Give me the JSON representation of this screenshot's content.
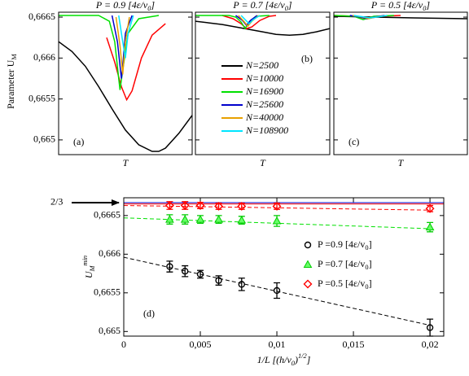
{
  "chart_data": [
    {
      "type": "line",
      "title": [
        "P = 0.9  [4ε/v",
        [
          "0",
          "sub"
        ],
        "]"
      ],
      "ylabel": [
        "Parameter U",
        [
          "M",
          "sub"
        ]
      ],
      "xlabel": "T",
      "label": "(a)",
      "xlim": [
        0,
        1
      ],
      "ylim": [
        0.66482,
        0.66656
      ],
      "yticks": [
        {
          "value": 0.665,
          "label": "0,665"
        },
        {
          "value": 0.6655,
          "label": "0,6655"
        },
        {
          "value": 0.666,
          "label": "0,666"
        },
        {
          "value": 0.6665,
          "label": "0,6665"
        }
      ],
      "series": [
        {
          "color": "#000000",
          "x": [
            0,
            0.1,
            0.2,
            0.3,
            0.4,
            0.5,
            0.6,
            0.7,
            0.75,
            0.8,
            0.9,
            1
          ],
          "values": [
            0.6662,
            0.66608,
            0.6659,
            0.66565,
            0.66538,
            0.66512,
            0.66494,
            0.66486,
            0.66486,
            0.6649,
            0.66508,
            0.6653
          ]
        },
        {
          "color": "#ff0000",
          "x": [
            0.36,
            0.42,
            0.47,
            0.51,
            0.55,
            0.62,
            0.7,
            0.8
          ],
          "values": [
            0.66625,
            0.66595,
            0.66565,
            0.66549,
            0.6656,
            0.666,
            0.66628,
            0.66642
          ]
        },
        {
          "color": "#00e000",
          "x": [
            0,
            0.3,
            0.38,
            0.42,
            0.45,
            0.46,
            0.48,
            0.52,
            0.6,
            0.75
          ],
          "values": [
            0.66652,
            0.66652,
            0.66645,
            0.6662,
            0.66575,
            0.66561,
            0.66585,
            0.6663,
            0.66648,
            0.66652
          ]
        },
        {
          "color": "#0000cc",
          "x": [
            0.4,
            0.44,
            0.47,
            0.48,
            0.5,
            0.55
          ],
          "values": [
            0.66652,
            0.6662,
            0.66575,
            0.6659,
            0.6663,
            0.66652
          ]
        },
        {
          "color": "#e8a000",
          "x": [
            0.43,
            0.46,
            0.48,
            0.5,
            0.53
          ],
          "values": [
            0.6665,
            0.66615,
            0.6658,
            0.6662,
            0.6665
          ]
        },
        {
          "color": "#00e5ff",
          "x": [
            0.45,
            0.48,
            0.5,
            0.52,
            0.56
          ],
          "values": [
            0.66652,
            0.6662,
            0.666,
            0.6663,
            0.66652
          ]
        }
      ]
    },
    {
      "type": "line",
      "title": [
        "P = 0.7  [4ε/v",
        [
          "0",
          "sub"
        ],
        "]"
      ],
      "xlabel": "T",
      "label": "(b)",
      "legend": "center",
      "xlim": [
        0,
        1
      ],
      "ylim": [
        0.66482,
        0.66656
      ],
      "yticks": [
        0.665,
        0.6655,
        0.666,
        0.6665
      ],
      "series": [
        {
          "name": "N=2500",
          "color": "#000000",
          "x": [
            0,
            0.1,
            0.2,
            0.3,
            0.4,
            0.5,
            0.6,
            0.7,
            0.8,
            0.9,
            1
          ],
          "values": [
            0.66645,
            0.66643,
            0.66641,
            0.66638,
            0.66635,
            0.66632,
            0.66629,
            0.66628,
            0.66629,
            0.66632,
            0.66636
          ]
        },
        {
          "name": "N=10000",
          "color": "#ff0000",
          "x": [
            0.2,
            0.28,
            0.34,
            0.38,
            0.42,
            0.48,
            0.55,
            0.6
          ],
          "values": [
            0.66652,
            0.66648,
            0.66642,
            0.66636,
            0.66638,
            0.66646,
            0.66651,
            0.66652
          ]
        },
        {
          "name": "N=16900",
          "color": "#00e000",
          "x": [
            0,
            0.25,
            0.3,
            0.34,
            0.37,
            0.4,
            0.45,
            0.55
          ],
          "values": [
            0.66652,
            0.66652,
            0.6665,
            0.66644,
            0.66636,
            0.66644,
            0.66651,
            0.66652
          ]
        },
        {
          "name": "N=25600",
          "color": "#0000cc",
          "x": [
            0.3,
            0.35,
            0.38,
            0.41,
            0.46
          ],
          "values": [
            0.66652,
            0.66646,
            0.6664,
            0.66646,
            0.66652
          ]
        },
        {
          "name": "N=40000",
          "color": "#e8a000",
          "x": [
            0.32,
            0.36,
            0.39,
            0.42,
            0.47
          ],
          "values": [
            0.66652,
            0.66645,
            0.66639,
            0.66645,
            0.66652
          ]
        },
        {
          "name": "N=108900",
          "color": "#00e5ff",
          "x": [
            0.34,
            0.37,
            0.4,
            0.43,
            0.48
          ],
          "values": [
            0.66652,
            0.66647,
            0.66642,
            0.66647,
            0.66652
          ]
        }
      ]
    },
    {
      "type": "line",
      "title": [
        "P = 0.5  [4ε/v",
        [
          "0",
          "sub"
        ],
        "]"
      ],
      "xlabel": "T",
      "label": "(c)",
      "xlim": [
        0,
        1
      ],
      "ylim": [
        0.66482,
        0.66656
      ],
      "yticks": [
        0.665,
        0.6655,
        0.666,
        0.6665
      ],
      "series": [
        {
          "color": "#000000",
          "x": [
            0,
            0.3,
            0.6,
            1
          ],
          "values": [
            0.66651,
            0.6665,
            0.66649,
            0.66648
          ]
        },
        {
          "color": "#ff0000",
          "x": [
            0,
            0.15,
            0.25,
            0.35,
            0.5
          ],
          "values": [
            0.66652,
            0.66651,
            0.66648,
            0.66651,
            0.66652
          ]
        },
        {
          "color": "#00e000",
          "x": [
            0,
            0.15,
            0.22,
            0.3,
            0.45
          ],
          "values": [
            0.66652,
            0.66651,
            0.66647,
            0.66651,
            0.66652
          ]
        },
        {
          "color": "#0000cc",
          "x": [
            0.12,
            0.2,
            0.25,
            0.3,
            0.38
          ],
          "values": [
            0.66652,
            0.6665,
            0.66648,
            0.6665,
            0.66652
          ]
        },
        {
          "color": "#e8a000",
          "x": [
            0.14,
            0.22,
            0.26,
            0.31,
            0.4
          ],
          "values": [
            0.66652,
            0.6665,
            0.66648,
            0.6665,
            0.66652
          ]
        },
        {
          "color": "#00e5ff",
          "x": [
            0.15,
            0.23,
            0.27,
            0.32,
            0.4
          ],
          "values": [
            0.66652,
            0.6665,
            0.66649,
            0.6665,
            0.66652
          ]
        }
      ]
    },
    {
      "type": "scatter",
      "label": "(d)",
      "ylabel": [
        "U",
        [
          "M",
          "sub"
        ],
        [
          "min",
          "sup"
        ]
      ],
      "xlabel": [
        "1/L  [(h/v",
        [
          "0",
          "sub"
        ],
        ")",
        [
          "1/2",
          "sup"
        ],
        "]"
      ],
      "xlim": [
        0,
        0.0209
      ],
      "ylim": [
        0.66494,
        0.66673
      ],
      "xticks": [
        0,
        {
          "value": 0.005,
          "label": "0,005"
        },
        {
          "value": 0.01,
          "label": "0,01"
        },
        {
          "value": 0.015,
          "label": "0,015"
        },
        {
          "value": 0.02,
          "label": "0,02"
        }
      ],
      "yticks": [
        {
          "value": 0.665,
          "label": "0,665"
        },
        {
          "value": 0.6655,
          "label": "0,6655"
        },
        {
          "value": 0.666,
          "label": "0,666"
        },
        {
          "value": 0.6665,
          "label": "0,6665"
        }
      ],
      "annotation": {
        "text": "2/3",
        "value": 0.666667
      },
      "lines": [
        {
          "color": "#0000cc",
          "dashed": false,
          "x": [
            0,
            0.0209
          ],
          "values": [
            0.666667,
            0.666667
          ]
        },
        {
          "color": "#ff0000",
          "dashed": false,
          "x": [
            0,
            0.0209
          ],
          "values": [
            0.66665,
            0.66665
          ]
        },
        {
          "color": "#000000",
          "dashed": true,
          "x": [
            0,
            0.02
          ],
          "values": [
            0.66596,
            0.66508
          ]
        },
        {
          "color": "#00e000",
          "dashed": true,
          "x": [
            0,
            0.02
          ],
          "values": [
            0.66647,
            0.66633
          ]
        },
        {
          "color": "#ff0000",
          "dashed": true,
          "x": [
            0,
            0.02
          ],
          "values": [
            0.66663,
            0.66657
          ]
        }
      ],
      "series": [
        {
          "name": [
            "P =0.9  [4ε/v",
            [
              "0",
              "sub"
            ],
            "]"
          ],
          "color": "#000000",
          "marker": "circle",
          "x": [
            0.003,
            0.004,
            0.005,
            0.0062,
            0.0077,
            0.01,
            0.02
          ],
          "values": [
            0.66584,
            0.66578,
            0.66574,
            0.66566,
            0.66561,
            0.66553,
            0.66505
          ],
          "errors": [
            7e-05,
            7e-05,
            5e-05,
            6e-05,
            8e-05,
            0.0001,
            0.00011
          ]
        },
        {
          "name": [
            "P =0.7  [4ε/v",
            [
              "0",
              "sub"
            ],
            "]"
          ],
          "color": "#00cc00",
          "marker": "triangle",
          "x": [
            0.003,
            0.004,
            0.005,
            0.0062,
            0.0077,
            0.01,
            0.02
          ],
          "values": [
            0.66645,
            0.66645,
            0.66645,
            0.66645,
            0.66644,
            0.66643,
            0.66635
          ],
          "errors": [
            6e-05,
            6e-05,
            5e-05,
            5e-05,
            5e-05,
            7e-05,
            6e-05
          ]
        },
        {
          "name": [
            "P =0.5  [4ε/v",
            [
              "0",
              "sub"
            ],
            "]"
          ],
          "color": "#ff0000",
          "marker": "diamond",
          "x": [
            0.003,
            0.004,
            0.005,
            0.0062,
            0.0077,
            0.01,
            0.02
          ],
          "values": [
            0.66663,
            0.66663,
            0.66663,
            0.66662,
            0.66662,
            0.66662,
            0.66659
          ],
          "errors": [
            5e-05,
            5e-05,
            4e-05,
            4e-05,
            4e-05,
            4e-05,
            4e-05
          ]
        }
      ]
    }
  ]
}
